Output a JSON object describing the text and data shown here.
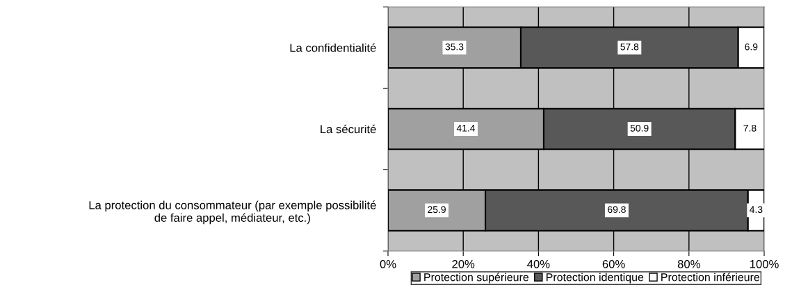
{
  "chart_data": {
    "type": "bar",
    "orientation": "horizontal",
    "stacked": true,
    "categories": [
      "La confidentialité",
      "La sécurité",
      "La protection du consommateur (par exemple possibilité\nde faire appel, médiateur, etc.)"
    ],
    "series": [
      {
        "name": "Protection supérieure",
        "color": "#a0a0a0",
        "values": [
          35.3,
          41.4,
          25.9
        ]
      },
      {
        "name": "Protection identique",
        "color": "#585858",
        "values": [
          57.8,
          50.9,
          69.8
        ]
      },
      {
        "name": "Protection inférieure",
        "color": "#ffffff",
        "values": [
          6.9,
          7.8,
          4.3
        ]
      }
    ],
    "xlim": [
      0,
      100
    ],
    "xticks": [
      {
        "value": 0,
        "label": "0%"
      },
      {
        "value": 20,
        "label": "20%"
      },
      {
        "value": 40,
        "label": "40%"
      },
      {
        "value": 60,
        "label": "60%"
      },
      {
        "value": 80,
        "label": "80%"
      },
      {
        "value": 100,
        "label": "100%"
      }
    ],
    "grid": "x",
    "legend": "bottom",
    "data_labels": true
  }
}
